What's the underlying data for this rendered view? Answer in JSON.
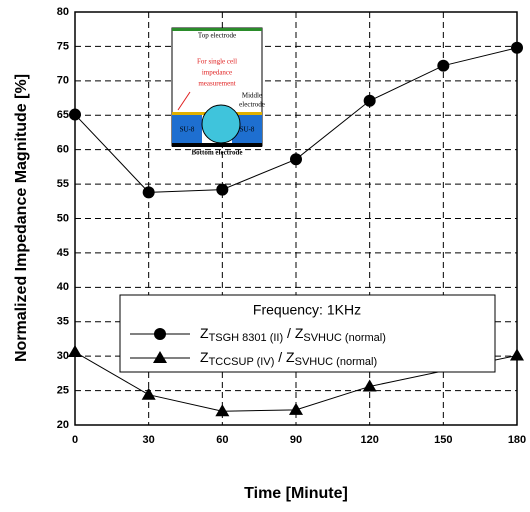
{
  "chart_data": {
    "type": "line",
    "xlabel": "Time [Minute]",
    "ylabel": "Normalized Impedance Magnitude [%]",
    "xlim": [
      0,
      180
    ],
    "xticks": [
      0,
      30,
      60,
      90,
      120,
      150,
      180
    ],
    "ylim": [
      20,
      80
    ],
    "yticks": [
      20,
      25,
      30,
      35,
      40,
      45,
      50,
      55,
      60,
      65,
      70,
      75,
      80
    ],
    "grid": true,
    "legend_title": "Frequency: 1KHz",
    "series": [
      {
        "name_parts": [
          {
            "text": "Z",
            "sub": false
          },
          {
            "text": "TSGH 8301 (II)",
            "sub": true
          },
          {
            "text": " / ",
            "sub": false
          },
          {
            "text": "Z",
            "sub": false
          },
          {
            "text": "SVHUC (normal)",
            "sub": true
          }
        ],
        "marker": "circle",
        "color": "#000000",
        "x": [
          0,
          30,
          60,
          90,
          120,
          150,
          180
        ],
        "values": [
          65.1,
          53.8,
          54.2,
          58.6,
          67.1,
          72.2,
          74.8
        ]
      },
      {
        "name_parts": [
          {
            "text": "Z",
            "sub": false
          },
          {
            "text": "TCCSUP (IV)",
            "sub": true
          },
          {
            "text": " / ",
            "sub": false
          },
          {
            "text": "Z",
            "sub": false
          },
          {
            "text": "SVHUC (normal)",
            "sub": true
          }
        ],
        "marker": "triangle",
        "color": "#000000",
        "x": [
          0,
          30,
          60,
          90,
          120,
          180
        ],
        "values": [
          30.6,
          24.4,
          22.0,
          22.2,
          25.6,
          30.1
        ]
      }
    ]
  },
  "inset": {
    "top": "Top electrode",
    "note": [
      "For single cell",
      "impedance",
      "measurement"
    ],
    "middle": [
      "Middle",
      "electrode"
    ],
    "su8_left": "SU-8",
    "su8_right": "SU-8",
    "bottom": "Bottom electrode"
  }
}
